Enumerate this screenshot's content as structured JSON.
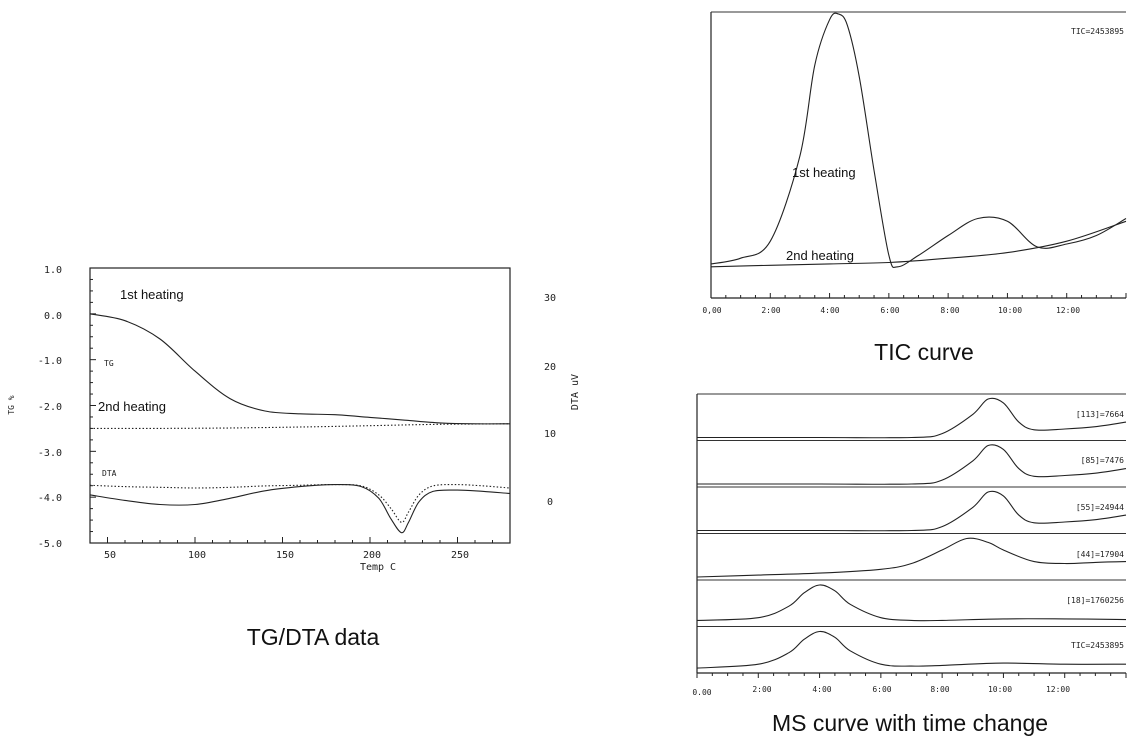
{
  "tgdta": {
    "title": "TG/DTA data",
    "xlabel": "Temp C",
    "ylabel_left": "TG %",
    "ylabel_right": "DTA uV",
    "x_ticks": [
      "50",
      "100",
      "150",
      "200",
      "250"
    ],
    "y_left_ticks": [
      "1.0",
      "0.0",
      "-1.0",
      "-2.0",
      "-3.0",
      "-4.0",
      "-5.0"
    ],
    "y_right_ticks": [
      "30",
      "20",
      "10",
      "0"
    ],
    "label_tg": "TG",
    "label_dta": "DTA",
    "label_1st": "1st heating",
    "label_2nd": "2nd heating"
  },
  "tic": {
    "title": "TIC curve",
    "tic_label": "TIC=2453895",
    "label_1st": "1st heating",
    "label_2nd": "2nd heating",
    "x_ticks": [
      "0,00",
      "2:00",
      "4:00",
      "6:00",
      "8:00",
      "10:00",
      "12:00"
    ]
  },
  "ms": {
    "title": "MS curve with time change",
    "panel_labels": [
      "[113]=7664",
      "[85]=7476",
      "[55]=24944",
      "[44]=17904",
      "[18]=1760256",
      "TIC=2453895"
    ],
    "x_ticks": [
      "0.00",
      "2:00",
      "4:00",
      "6:00",
      "8:00",
      "10:00",
      "12:00"
    ]
  },
  "colors": {
    "ink": "#222222",
    "background": "#ffffff"
  },
  "chart_data": [
    {
      "type": "line",
      "title": "TG/DTA data",
      "xlabel": "Temp C",
      "ylabel": "TG %",
      "y2label": "DTA uV",
      "xlim": [
        40,
        280
      ],
      "ylim": [
        -5.0,
        1.0
      ],
      "y2lim": [
        -5,
        35
      ],
      "series": [
        {
          "name": "TG",
          "axis": "left",
          "style": "solid",
          "x": [
            40,
            60,
            80,
            100,
            120,
            140,
            160,
            180,
            200,
            220,
            240,
            260,
            280
          ],
          "y": [
            0.0,
            -0.15,
            -0.55,
            -1.25,
            -1.85,
            -2.12,
            -2.18,
            -2.2,
            -2.26,
            -2.32,
            -2.38,
            -2.4,
            -2.4
          ]
        },
        {
          "style": "dotted",
          "axis": "left",
          "x": [
            40,
            80,
            120,
            160,
            200,
            240,
            280
          ],
          "y": [
            -2.5,
            -2.5,
            -2.49,
            -2.47,
            -2.44,
            -2.41,
            -2.4
          ]
        },
        {
          "name": "DTA",
          "axis": "right",
          "style": "solid",
          "x": [
            40,
            60,
            80,
            100,
            120,
            140,
            160,
            180,
            195,
            205,
            212,
            218,
            222,
            228,
            236,
            250,
            265,
            280
          ],
          "y": [
            2.0,
            1.2,
            0.6,
            0.6,
            1.5,
            2.6,
            3.2,
            3.5,
            3.2,
            1.5,
            -1.5,
            -3.5,
            -2.0,
            1.0,
            2.5,
            2.7,
            2.5,
            2.2
          ]
        },
        {
          "style": "dotted",
          "axis": "right",
          "x": [
            40,
            60,
            80,
            100,
            120,
            140,
            160,
            180,
            195,
            205,
            212,
            218,
            222,
            228,
            236,
            250,
            265,
            280
          ],
          "y": [
            3.4,
            3.2,
            3.1,
            3.0,
            3.1,
            3.3,
            3.4,
            3.5,
            3.3,
            2.0,
            0.0,
            -2.0,
            -0.5,
            2.0,
            3.3,
            3.5,
            3.3,
            3.0
          ]
        }
      ]
    },
    {
      "type": "line",
      "title": "TIC curve",
      "xlim": [
        0,
        14
      ],
      "ylim": [
        0,
        100
      ],
      "series": [
        {
          "name": "1st heating",
          "x": [
            0,
            1,
            2,
            3,
            3.5,
            4,
            4.3,
            4.6,
            5,
            5.5,
            6,
            6.3,
            7,
            8,
            9,
            10,
            11,
            12,
            13,
            14
          ],
          "y": [
            12,
            14,
            20,
            50,
            82,
            98,
            100,
            96,
            78,
            45,
            15,
            11,
            15,
            22,
            28,
            27,
            18,
            19,
            22,
            28
          ]
        },
        {
          "name": "2nd heating",
          "x": [
            0,
            2,
            4,
            6,
            8,
            10,
            12,
            14
          ],
          "y": [
            11,
            11.5,
            12,
            12.5,
            14,
            16,
            20,
            27
          ]
        }
      ]
    },
    {
      "type": "line",
      "title": "MS curve with time change",
      "xlim": [
        0,
        14
      ],
      "ylim": [
        0,
        100
      ],
      "series": [
        {
          "name": "[113]=7664",
          "x": [
            0,
            4,
            7,
            8,
            9,
            9.5,
            10,
            10.5,
            11,
            12,
            13,
            14
          ],
          "y": [
            0,
            0,
            0,
            10,
            60,
            100,
            90,
            40,
            20,
            22,
            28,
            40
          ]
        },
        {
          "name": "[85]=7476",
          "x": [
            0,
            4,
            7,
            8,
            9,
            9.5,
            10,
            10.5,
            11,
            12,
            13,
            14
          ],
          "y": [
            0,
            0,
            0,
            10,
            60,
            100,
            90,
            40,
            20,
            22,
            28,
            40
          ]
        },
        {
          "name": "[55]=24944",
          "x": [
            0,
            4,
            7,
            8,
            9,
            9.5,
            10,
            10.5,
            11,
            12,
            13,
            14
          ],
          "y": [
            0,
            0,
            0,
            10,
            60,
            100,
            90,
            40,
            20,
            22,
            28,
            40
          ]
        },
        {
          "name": "[44]=17904",
          "x": [
            0,
            2,
            4,
            6,
            7,
            8,
            8.8,
            9.5,
            10,
            11,
            12,
            13,
            14
          ],
          "y": [
            0,
            5,
            10,
            20,
            35,
            70,
            100,
            90,
            70,
            40,
            35,
            38,
            40
          ]
        },
        {
          "name": "[18]=1760256",
          "x": [
            0,
            2,
            3,
            3.5,
            4,
            4.5,
            5,
            6,
            7,
            8,
            10,
            12,
            14
          ],
          "y": [
            8,
            15,
            45,
            80,
            100,
            85,
            50,
            15,
            8,
            8,
            12,
            12,
            10
          ]
        },
        {
          "name": "TIC=2453895",
          "x": [
            0,
            2,
            3,
            3.5,
            4,
            4.5,
            5,
            6,
            7,
            8,
            10,
            12,
            14
          ],
          "y": [
            5,
            15,
            45,
            80,
            100,
            85,
            50,
            15,
            10,
            12,
            18,
            15,
            15
          ]
        }
      ]
    }
  ]
}
